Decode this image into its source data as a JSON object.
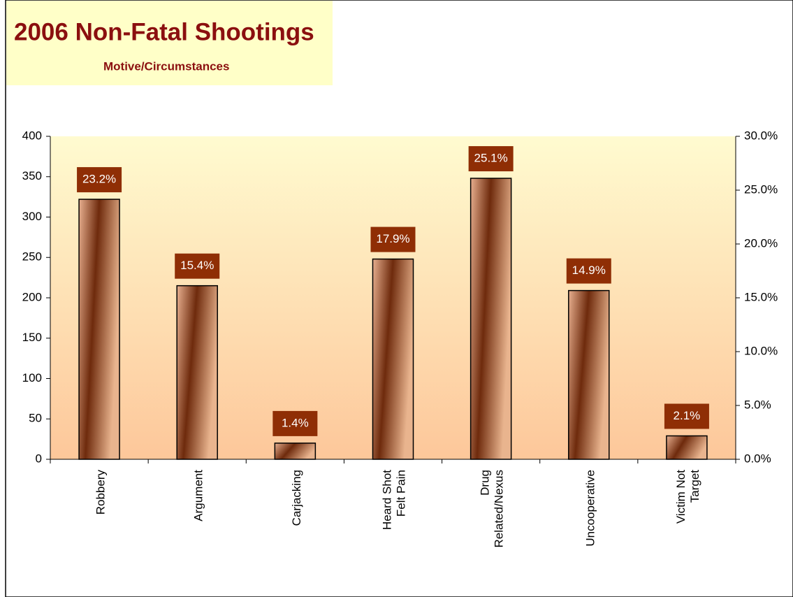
{
  "chart_data": {
    "type": "bar",
    "title": "2006 Non-Fatal Shootings",
    "subtitle": "Motive/Circumstances",
    "categories": [
      "Robbery",
      "Argument",
      "Carjacking",
      "Heard Shot\nFelt Pain",
      "Drug\nRelated/Nexus",
      "Uncooperative",
      "Victim Not\nTarget"
    ],
    "values": [
      322,
      215,
      20,
      248,
      348,
      209,
      29
    ],
    "color": "#8b3a10",
    "percentages": {
      "values": [
        23.2,
        15.4,
        1.4,
        17.9,
        25.1,
        14.9,
        2.1
      ],
      "value_labels": [
        "23.2%",
        "15.4%",
        "1.4%",
        "17.9%",
        "25.1%",
        "14.9%",
        "2.1%"
      ]
    },
    "ylim": [
      0,
      400
    ],
    "yticks": [
      0,
      50,
      100,
      150,
      200,
      250,
      300,
      350,
      400
    ],
    "y2lim": [
      0,
      30
    ],
    "y2ticks": [
      {
        "value": 0,
        "label": "0.0%"
      },
      {
        "value": 5,
        "label": "5.0%"
      },
      {
        "value": 10,
        "label": "10.0%"
      },
      {
        "value": 15,
        "label": "15.0%"
      },
      {
        "value": 20,
        "label": "20.0%"
      },
      {
        "value": 25,
        "label": "25.0%"
      },
      {
        "value": 30,
        "label": "30.0%"
      }
    ]
  }
}
